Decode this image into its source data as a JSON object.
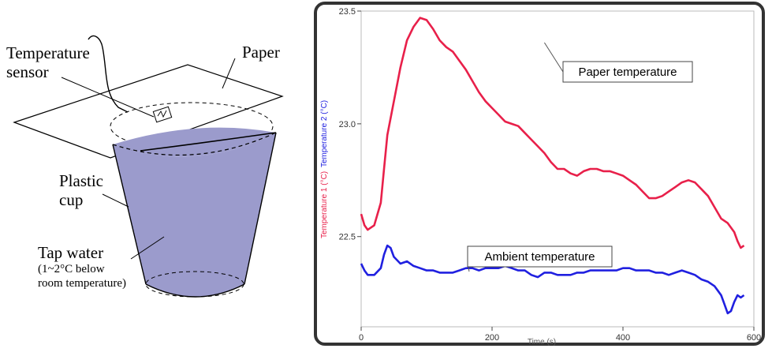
{
  "diagram": {
    "labels": {
      "sensor_line1": "Temperature",
      "sensor_line2": "sensor",
      "paper": "Paper",
      "cup_line1": "Plastic",
      "cup_line2": "cup",
      "water_line1": "Tap water",
      "water_line2": "(1~2°C below",
      "water_line3": "room temperature)"
    },
    "colors": {
      "water": "#9b9bcc",
      "outline": "#000000"
    }
  },
  "chart_data": {
    "type": "line",
    "title": "",
    "xlabel": "Time (s)",
    "ylabel_1": "Temperature 1 (°C)",
    "ylabel_2": "Temperature 2 (°C)",
    "xlim": [
      0,
      600
    ],
    "ylim": [
      22.1,
      23.5
    ],
    "xticks": [
      "0",
      "200",
      "400",
      "600"
    ],
    "xtick_values": [
      0,
      200,
      400,
      600
    ],
    "yticks": [
      "22.5",
      "23.0",
      "23.5"
    ],
    "ytick_values": [
      22.5,
      23.0,
      23.5
    ],
    "grid": false,
    "series": [
      {
        "name": "Paper temperature",
        "color": "#e8204a",
        "x": [
          0,
          5,
          10,
          20,
          30,
          35,
          40,
          50,
          60,
          70,
          80,
          90,
          100,
          110,
          120,
          130,
          140,
          150,
          160,
          170,
          180,
          190,
          200,
          210,
          220,
          230,
          240,
          250,
          260,
          270,
          280,
          290,
          300,
          310,
          320,
          330,
          340,
          350,
          360,
          370,
          380,
          390,
          400,
          410,
          420,
          430,
          440,
          450,
          460,
          470,
          480,
          490,
          500,
          510,
          520,
          530,
          540,
          550,
          560,
          570,
          575,
          580,
          585
        ],
        "values": [
          22.6,
          22.55,
          22.53,
          22.55,
          22.65,
          22.8,
          22.95,
          23.1,
          23.25,
          23.37,
          23.43,
          23.47,
          23.46,
          23.42,
          23.37,
          23.34,
          23.32,
          23.28,
          23.24,
          23.19,
          23.14,
          23.1,
          23.07,
          23.04,
          23.01,
          23.0,
          22.99,
          22.96,
          22.93,
          22.9,
          22.87,
          22.83,
          22.8,
          22.8,
          22.78,
          22.77,
          22.79,
          22.8,
          22.8,
          22.79,
          22.79,
          22.78,
          22.77,
          22.75,
          22.73,
          22.7,
          22.67,
          22.67,
          22.68,
          22.7,
          22.72,
          22.74,
          22.75,
          22.74,
          22.71,
          22.68,
          22.63,
          22.58,
          22.56,
          22.52,
          22.48,
          22.45,
          22.46
        ]
      },
      {
        "name": "Ambient temperature",
        "color": "#2020e0",
        "x": [
          0,
          5,
          10,
          20,
          30,
          35,
          40,
          45,
          50,
          60,
          70,
          80,
          90,
          100,
          110,
          120,
          130,
          140,
          150,
          160,
          170,
          180,
          190,
          200,
          210,
          220,
          230,
          240,
          250,
          260,
          270,
          280,
          290,
          300,
          310,
          320,
          330,
          340,
          350,
          360,
          370,
          380,
          390,
          400,
          410,
          420,
          430,
          440,
          450,
          460,
          470,
          480,
          490,
          500,
          510,
          520,
          530,
          540,
          545,
          550,
          555,
          560,
          565,
          570,
          575,
          580,
          585
        ],
        "values": [
          22.38,
          22.35,
          22.33,
          22.33,
          22.36,
          22.42,
          22.46,
          22.45,
          22.41,
          22.38,
          22.39,
          22.37,
          22.36,
          22.35,
          22.35,
          22.34,
          22.34,
          22.34,
          22.35,
          22.36,
          22.36,
          22.35,
          22.36,
          22.36,
          22.36,
          22.37,
          22.36,
          22.35,
          22.35,
          22.33,
          22.32,
          22.34,
          22.34,
          22.33,
          22.33,
          22.33,
          22.34,
          22.34,
          22.35,
          22.35,
          22.35,
          22.35,
          22.35,
          22.36,
          22.36,
          22.35,
          22.35,
          22.35,
          22.34,
          22.34,
          22.33,
          22.34,
          22.35,
          22.34,
          22.33,
          22.31,
          22.3,
          22.28,
          22.26,
          22.24,
          22.2,
          22.16,
          22.17,
          22.21,
          22.24,
          22.23,
          22.24
        ]
      }
    ],
    "annotations": [
      {
        "text": "Paper temperature",
        "x": 280,
        "y": 23.35
      },
      {
        "text": "Ambient temperature",
        "x": 165,
        "y": 22.34
      }
    ]
  }
}
